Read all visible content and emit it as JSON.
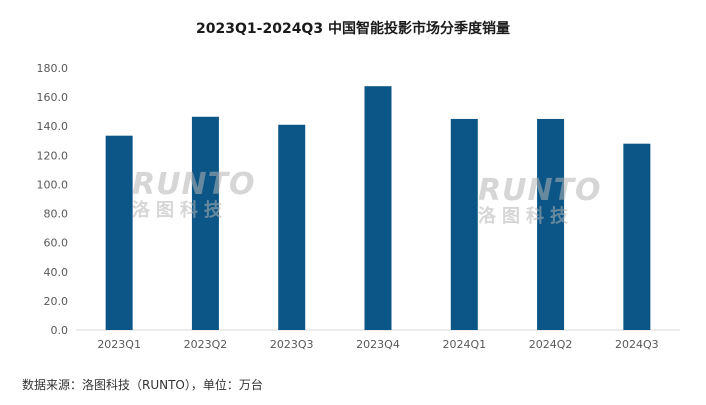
{
  "title": "2023Q1-2024Q3 中国智能投影市场分季度销量",
  "footer": "数据来源：洛图科技（RUNTO），单位：万台",
  "watermark": {
    "brand": "RUNTO",
    "cn": "洛图科技"
  },
  "colors": {
    "bar": "#0b5686",
    "axis": "#d9d9d9",
    "text": "#595959"
  },
  "chart_data": {
    "type": "bar",
    "categories": [
      "2023Q1",
      "2023Q2",
      "2023Q3",
      "2023Q4",
      "2024Q1",
      "2024Q2",
      "2024Q3"
    ],
    "values": [
      133.5,
      146.5,
      141.0,
      167.5,
      145.0,
      145.0,
      128.0
    ],
    "yticks": [
      "0.0",
      "20.0",
      "40.0",
      "60.0",
      "80.0",
      "100.0",
      "120.0",
      "140.0",
      "160.0",
      "180.0"
    ],
    "ylim": [
      0,
      180
    ],
    "grid": false,
    "legend": "none"
  }
}
